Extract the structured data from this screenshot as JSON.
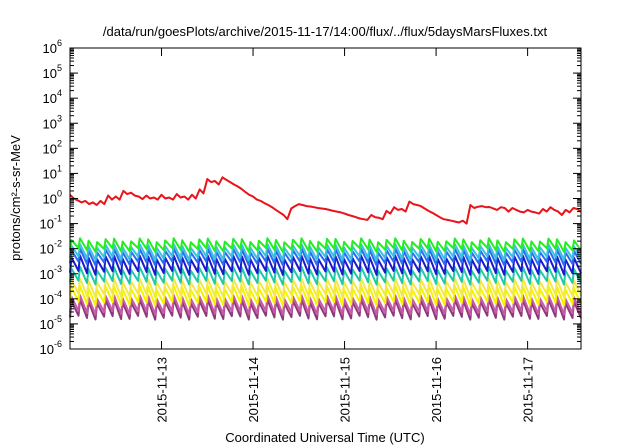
{
  "chart_data": {
    "type": "line",
    "title": "/data/run/goesPlots/archive/2015-11-17/14:00/flux/../flux/5daysMarsFluxes.txt",
    "xlabel": "Coordinated Universal Time (UTC)",
    "ylabel": "protons/cm²-s-sr-MeV",
    "y_scale": "log",
    "ylim": [
      1e-06,
      1000000.0
    ],
    "xlim": [
      "2015-11-12T00:00",
      "2015-11-17T14:00"
    ],
    "grid": false,
    "legend": "none",
    "y_ticks": [
      {
        "value": 1e-06,
        "base": "10",
        "exp": "-6"
      },
      {
        "value": 1e-05,
        "base": "10",
        "exp": "-5"
      },
      {
        "value": 0.0001,
        "base": "10",
        "exp": "-4"
      },
      {
        "value": 0.001,
        "base": "10",
        "exp": "-3"
      },
      {
        "value": 0.01,
        "base": "10",
        "exp": "-2"
      },
      {
        "value": 0.1,
        "base": "10",
        "exp": "-1"
      },
      {
        "value": 1,
        "base": "10",
        "exp": "0"
      },
      {
        "value": 10.0,
        "base": "10",
        "exp": "1"
      },
      {
        "value": 100.0,
        "base": "10",
        "exp": "2"
      },
      {
        "value": 1000.0,
        "base": "10",
        "exp": "3"
      },
      {
        "value": 10000.0,
        "base": "10",
        "exp": "4"
      },
      {
        "value": 100000.0,
        "base": "10",
        "exp": "5"
      },
      {
        "value": 1000000.0,
        "base": "10",
        "exp": "6"
      }
    ],
    "x_ticks": [
      {
        "value": "2015-11-13T00:00",
        "label": "2015-11-13"
      },
      {
        "value": "2015-11-14T00:00",
        "label": "2015-11-14"
      },
      {
        "value": "2015-11-15T00:00",
        "label": "2015-11-15"
      },
      {
        "value": "2015-11-16T00:00",
        "label": "2015-11-16"
      },
      {
        "value": "2015-11-17T00:00",
        "label": "2015-11-17"
      }
    ],
    "series": [
      {
        "color": "#e8141a",
        "x": [
          "2015-11-12T00:00",
          "2015-11-12T01:00",
          "2015-11-12T02:00",
          "2015-11-12T03:00",
          "2015-11-12T04:00",
          "2015-11-12T05:00",
          "2015-11-12T06:00",
          "2015-11-12T07:00",
          "2015-11-12T08:00",
          "2015-11-12T09:00",
          "2015-11-12T10:00",
          "2015-11-12T11:00",
          "2015-11-12T12:00",
          "2015-11-12T13:00",
          "2015-11-12T14:00",
          "2015-11-12T15:00",
          "2015-11-12T16:00",
          "2015-11-12T17:00",
          "2015-11-12T18:00",
          "2015-11-12T19:00",
          "2015-11-12T20:00",
          "2015-11-12T21:00",
          "2015-11-12T22:00",
          "2015-11-12T23:00",
          "2015-11-13T00:00",
          "2015-11-13T01:00",
          "2015-11-13T02:00",
          "2015-11-13T03:00",
          "2015-11-13T04:00",
          "2015-11-13T05:00",
          "2015-11-13T06:00",
          "2015-11-13T07:00",
          "2015-11-13T08:00",
          "2015-11-13T09:00",
          "2015-11-13T10:00",
          "2015-11-13T11:00",
          "2015-11-13T12:00",
          "2015-11-13T13:00",
          "2015-11-13T14:00",
          "2015-11-13T15:00",
          "2015-11-13T16:00",
          "2015-11-13T17:00",
          "2015-11-13T18:00",
          "2015-11-13T19:00",
          "2015-11-13T20:00",
          "2015-11-13T21:00",
          "2015-11-13T22:00",
          "2015-11-13T23:00",
          "2015-11-14T00:00",
          "2015-11-14T01:00",
          "2015-11-14T02:00",
          "2015-11-14T03:00",
          "2015-11-14T04:00",
          "2015-11-14T05:00",
          "2015-11-14T06:00",
          "2015-11-14T07:00",
          "2015-11-14T08:00",
          "2015-11-14T09:00",
          "2015-11-14T10:00",
          "2015-11-14T11:00",
          "2015-11-14T12:00",
          "2015-11-14T13:00",
          "2015-11-14T14:00",
          "2015-11-14T15:00",
          "2015-11-14T16:00",
          "2015-11-14T17:00",
          "2015-11-14T18:00",
          "2015-11-14T19:00",
          "2015-11-14T20:00",
          "2015-11-14T21:00",
          "2015-11-14T22:00",
          "2015-11-14T23:00",
          "2015-11-15T00:00",
          "2015-11-15T01:00",
          "2015-11-15T02:00",
          "2015-11-15T03:00",
          "2015-11-15T04:00",
          "2015-11-15T05:00",
          "2015-11-15T06:00",
          "2015-11-15T07:00",
          "2015-11-15T08:00",
          "2015-11-15T09:00",
          "2015-11-15T10:00",
          "2015-11-15T11:00",
          "2015-11-15T12:00",
          "2015-11-15T13:00",
          "2015-11-15T14:00",
          "2015-11-15T15:00",
          "2015-11-15T16:00",
          "2015-11-15T17:00",
          "2015-11-15T18:00",
          "2015-11-15T19:00",
          "2015-11-15T20:00",
          "2015-11-15T21:00",
          "2015-11-15T22:00",
          "2015-11-15T23:00",
          "2015-11-16T00:00",
          "2015-11-16T01:00",
          "2015-11-16T02:00",
          "2015-11-16T03:00",
          "2015-11-16T04:00",
          "2015-11-16T05:00",
          "2015-11-16T06:00",
          "2015-11-16T07:00",
          "2015-11-16T08:00",
          "2015-11-16T09:00",
          "2015-11-16T10:00",
          "2015-11-16T11:00",
          "2015-11-16T12:00",
          "2015-11-16T13:00",
          "2015-11-16T14:00",
          "2015-11-16T15:00",
          "2015-11-16T16:00",
          "2015-11-16T17:00",
          "2015-11-16T18:00",
          "2015-11-16T19:00",
          "2015-11-16T20:00",
          "2015-11-16T21:00",
          "2015-11-16T22:00",
          "2015-11-16T23:00",
          "2015-11-17T00:00",
          "2015-11-17T01:00",
          "2015-11-17T02:00",
          "2015-11-17T03:00",
          "2015-11-17T04:00",
          "2015-11-17T05:00",
          "2015-11-17T06:00",
          "2015-11-17T07:00",
          "2015-11-17T08:00",
          "2015-11-17T09:00",
          "2015-11-17T10:00",
          "2015-11-17T11:00",
          "2015-11-17T12:00",
          "2015-11-17T13:00",
          "2015-11-17T14:00"
        ],
        "y": [
          1.4,
          1.0,
          0.85,
          0.7,
          0.8,
          0.6,
          0.7,
          0.55,
          0.8,
          0.6,
          1.3,
          0.9,
          1.2,
          0.9,
          2.0,
          1.5,
          1.7,
          1.3,
          1.2,
          0.95,
          1.3,
          1.0,
          1.1,
          0.9,
          1.4,
          1.0,
          1.1,
          0.9,
          1.5,
          1.1,
          1.2,
          0.9,
          1.4,
          1.0,
          2.3,
          1.6,
          6.0,
          4.5,
          5.0,
          3.6,
          7.0,
          5.5,
          4.5,
          3.6,
          3.0,
          2.4,
          1.8,
          1.4,
          1.2,
          0.9,
          0.8,
          0.65,
          0.55,
          0.45,
          0.35,
          0.28,
          0.22,
          0.15,
          0.4,
          0.5,
          0.6,
          0.55,
          0.5,
          0.48,
          0.45,
          0.42,
          0.4,
          0.38,
          0.35,
          0.32,
          0.3,
          0.28,
          0.25,
          0.22,
          0.2,
          0.18,
          0.16,
          0.15,
          0.14,
          0.22,
          0.18,
          0.17,
          0.15,
          0.32,
          0.25,
          0.45,
          0.35,
          0.38,
          0.3,
          0.75,
          0.6,
          0.55,
          0.5,
          0.4,
          0.32,
          0.27,
          0.22,
          0.18,
          0.15,
          0.14,
          0.13,
          0.12,
          0.11,
          0.13,
          0.1,
          0.55,
          0.42,
          0.47,
          0.5,
          0.45,
          0.46,
          0.4,
          0.35,
          0.45,
          0.42,
          0.3,
          0.42,
          0.35,
          0.3,
          0.28,
          0.35,
          0.3,
          0.28,
          0.25,
          0.38,
          0.3,
          0.45,
          0.35,
          0.3,
          0.22,
          0.35,
          0.28,
          0.42,
          0.38,
          0.3
        ]
      },
      {
        "color": "#22ee22",
        "peak": 0.022,
        "trough": 0.009,
        "teeth": 60
      },
      {
        "color": "#3cc0e0",
        "peak": 0.013,
        "trough": 0.0042,
        "teeth": 60
      },
      {
        "color": "#2a6df0",
        "peak": 0.0085,
        "trough": 0.0026,
        "teeth": 60
      },
      {
        "color": "#1a1acc",
        "peak": 0.0045,
        "trough": 0.0011,
        "teeth": 60
      },
      {
        "color": "#22c8a8",
        "peak": 0.0016,
        "trough": 0.00045,
        "teeth": 60
      },
      {
        "color": "#f2e84a",
        "peak": 0.00055,
        "trough": 0.00014,
        "teeth": 60
      },
      {
        "color": "#f4f400",
        "peak": 0.00028,
        "trough": 6.5e-05,
        "teeth": 60
      },
      {
        "color": "#c85aa8",
        "peak": 0.00012,
        "trough": 2.8e-05,
        "teeth": 60
      },
      {
        "color": "#8c3a7a",
        "peak": 8e-05,
        "trough": 1.8e-05,
        "teeth": 60
      }
    ]
  }
}
